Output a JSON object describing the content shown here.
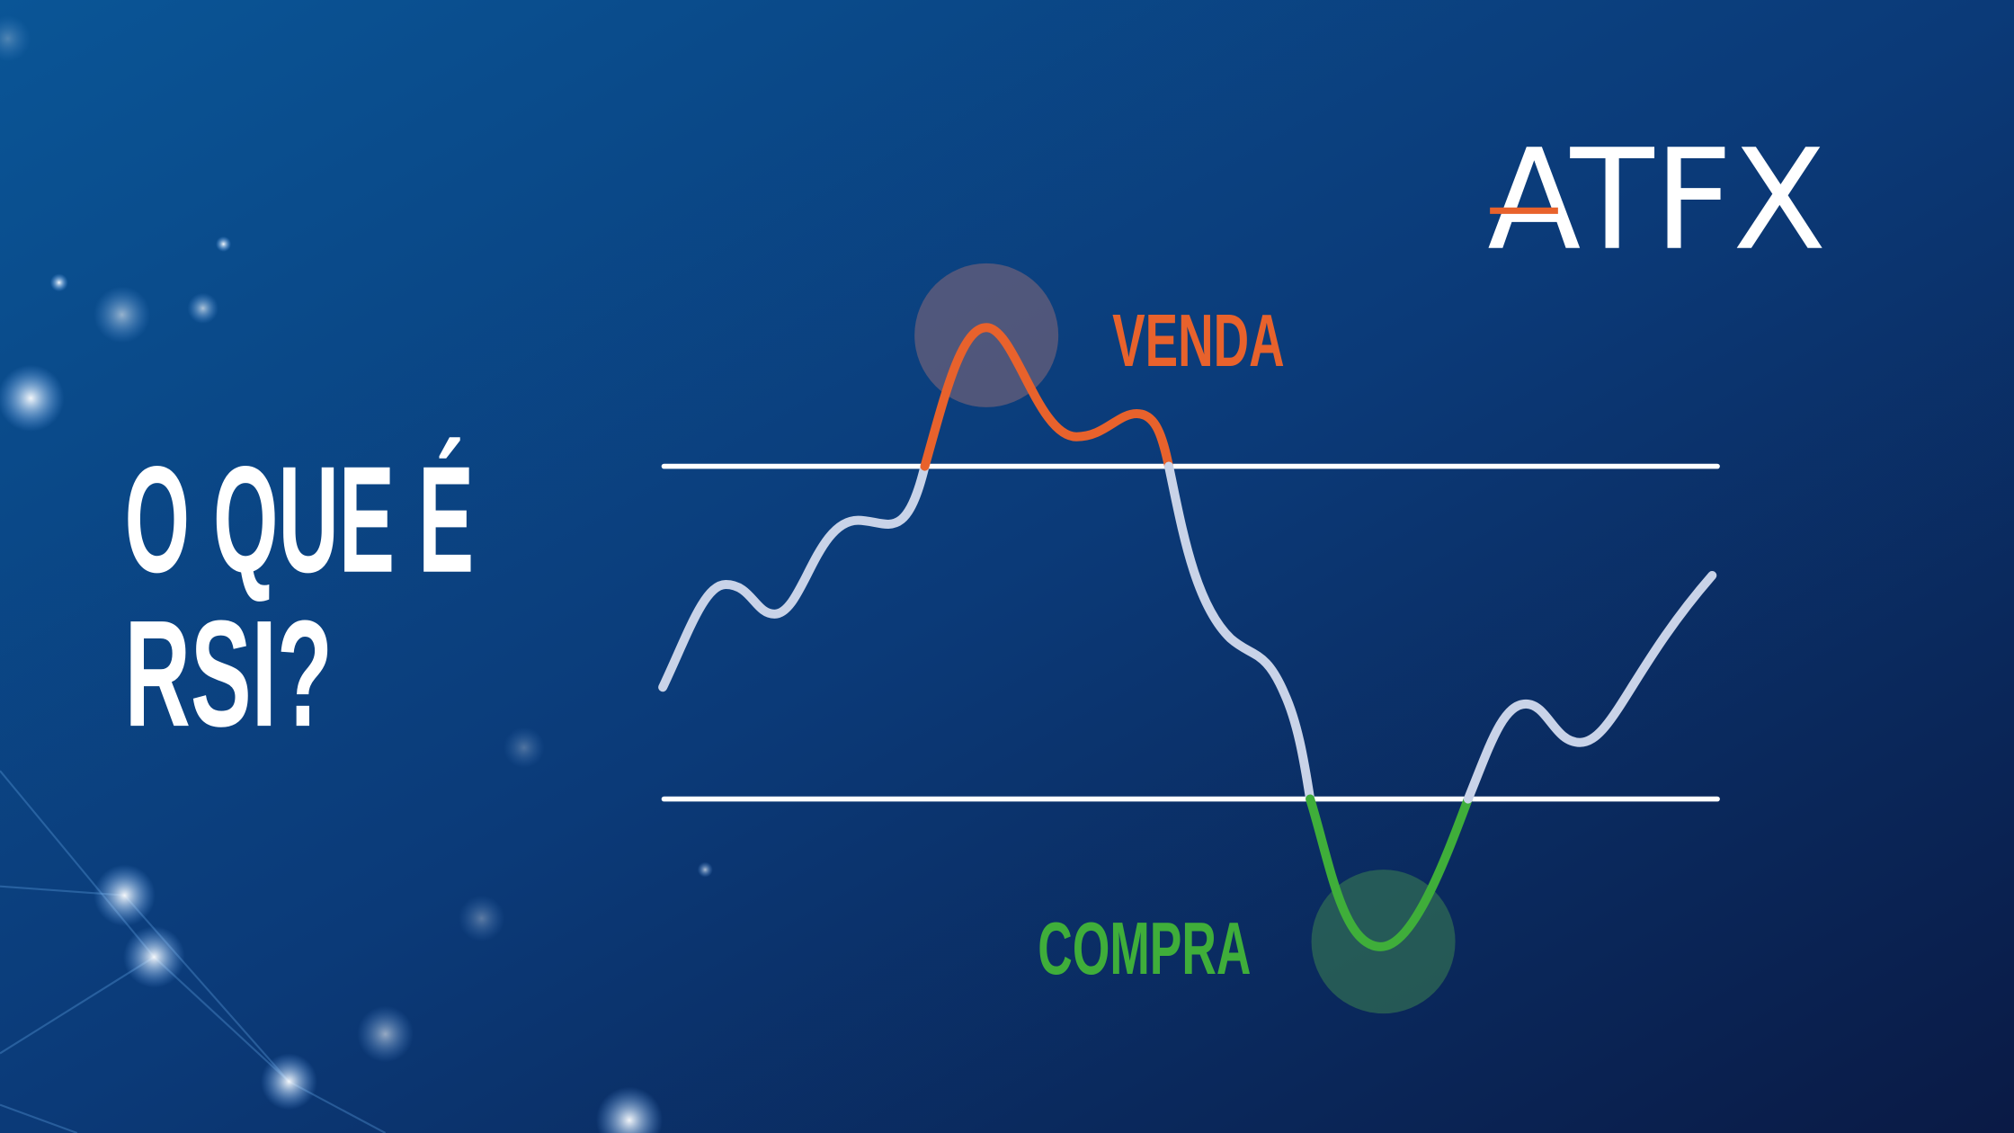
{
  "title": {
    "lines": [
      "O QUE É",
      "RSI?"
    ]
  },
  "labels": {
    "sell": "VENDA",
    "buy": "COMPRA"
  },
  "logo": "ATFX"
}
